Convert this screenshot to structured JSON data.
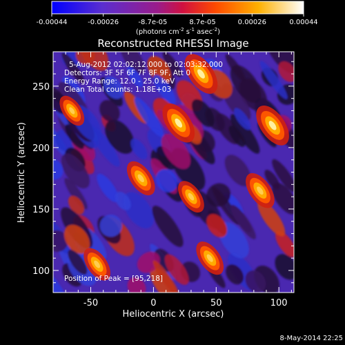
{
  "chart_data": {
    "type": "heatmap",
    "title": "Reconstructed RHESSI Image",
    "xlabel": "Heliocentric X (arcsec)",
    "ylabel": "Heliocentric Y (arcsec)",
    "xlim": [
      -80,
      112
    ],
    "ylim": [
      82,
      278
    ],
    "xticks": [
      -50,
      0,
      50,
      100
    ],
    "yticks": [
      100,
      150,
      200,
      250
    ],
    "colorbar": {
      "tick_labels": [
        "-0.00044",
        "-0.00026",
        "-8.7e-05",
        "8.7e-05",
        "0.00026",
        "0.00044"
      ],
      "tick_values": [
        -0.00044,
        -0.00026,
        -8.7e-05,
        8.7e-05,
        0.00026,
        0.00044
      ],
      "range": [
        -0.00044,
        0.00044
      ],
      "unit_base": "(photons cm",
      "unit_exp1": "-2",
      "unit_mid": " s",
      "unit_exp2": "-1",
      "unit_mid2": " asec",
      "unit_exp3": "-2",
      "unit_end": ")",
      "colormap": [
        "#0000ff",
        "#6a2ec8",
        "#c0145a",
        "#ff4500",
        "#ffaa00",
        "#ffffcc"
      ]
    },
    "annotations": {
      "time": "5-Aug-2012 02:02:12.000 to 02:03:32.000",
      "detectors": "Detectors: 3F 5F 6F 7F 8F 9F, Att 0",
      "energy": "Energy Range: 12.0 - 25.0 keV",
      "clean": "Clean     Total counts: 1.18E+03",
      "peak": "Position of Peak = [95,218]"
    },
    "peak_position": [
      95,
      218
    ],
    "bright_sources": [
      {
        "x": 38,
        "y": 260,
        "value": 0.00044
      },
      {
        "x": 20,
        "y": 220,
        "value": 0.00042
      },
      {
        "x": 95,
        "y": 218,
        "value": 0.00044
      },
      {
        "x": -10,
        "y": 175,
        "value": 0.0003
      },
      {
        "x": -45,
        "y": 105,
        "value": 0.00026
      },
      {
        "x": 45,
        "y": 110,
        "value": 0.00028
      },
      {
        "x": 85,
        "y": 165,
        "value": 0.00032
      },
      {
        "x": -65,
        "y": 230,
        "value": 0.0002
      },
      {
        "x": 30,
        "y": 160,
        "value": 0.00024
      }
    ]
  },
  "footer": {
    "timestamp": "8-May-2014 22:25"
  }
}
